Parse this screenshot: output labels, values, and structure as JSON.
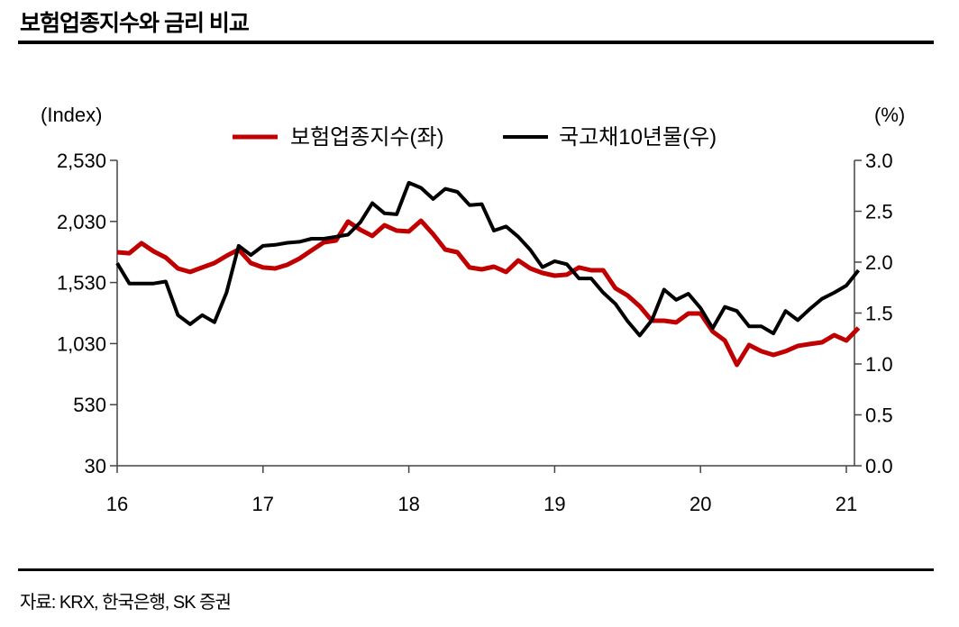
{
  "title": "보험업종지수와 금리 비교",
  "source": "자료: KRX, 한국은행, SK 증권",
  "chart_data": {
    "type": "line",
    "title": "보험업종지수와 금리 비교",
    "y_left_label": "(Index)",
    "y_right_label": "(%)",
    "x_ticks": [
      {
        "x": 0,
        "label": "16"
      },
      {
        "x": 12,
        "label": "17"
      },
      {
        "x": 24,
        "label": "18"
      },
      {
        "x": 36,
        "label": "19"
      },
      {
        "x": 48,
        "label": "20"
      },
      {
        "x": 60,
        "label": "21"
      }
    ],
    "x_range": [
      0,
      61
    ],
    "x_unit": "months since 2016-01",
    "ylim_left": [
      30,
      2530
    ],
    "yticks_left": [
      {
        "v": 2530,
        "label": "2,530"
      },
      {
        "v": 2030,
        "label": "2,030"
      },
      {
        "v": 1530,
        "label": "1,530"
      },
      {
        "v": 1030,
        "label": "1,030"
      },
      {
        "v": 530,
        "label": "530"
      },
      {
        "v": 30,
        "label": "30"
      }
    ],
    "ylim_right": [
      0,
      3.0
    ],
    "yticks_right": [
      {
        "v": 3.0,
        "label": "3.0"
      },
      {
        "v": 2.5,
        "label": "2.5"
      },
      {
        "v": 2.0,
        "label": "2.0"
      },
      {
        "v": 1.5,
        "label": "1.5"
      },
      {
        "v": 1.0,
        "label": "1.0"
      },
      {
        "v": 0.5,
        "label": "0.5"
      },
      {
        "v": 0.0,
        "label": "0.0"
      }
    ],
    "legend_position": "top-center",
    "series": [
      {
        "name": "보험업종지수(좌)",
        "axis": "left",
        "color": "#c00000",
        "values": [
          1778,
          1770,
          1852,
          1785,
          1734,
          1645,
          1616,
          1653,
          1689,
          1748,
          1800,
          1689,
          1653,
          1645,
          1675,
          1726,
          1793,
          1859,
          1874,
          2029,
          1962,
          1911,
          1999,
          1955,
          1948,
          2036,
          1925,
          1800,
          1778,
          1653,
          1638,
          1660,
          1616,
          1711,
          1645,
          1608,
          1586,
          1594,
          1653,
          1630,
          1630,
          1483,
          1424,
          1335,
          1217,
          1217,
          1203,
          1276,
          1276,
          1129,
          1055,
          856,
          1018,
          967,
          937,
          967,
          1011,
          1026,
          1040,
          1099,
          1055,
          1158
        ]
      },
      {
        "name": "국고채10년물(우)",
        "axis": "right",
        "color": "#000000",
        "values": [
          1.99,
          1.79,
          1.79,
          1.79,
          1.81,
          1.48,
          1.39,
          1.48,
          1.41,
          1.7,
          2.16,
          2.07,
          2.16,
          2.17,
          2.19,
          2.2,
          2.23,
          2.23,
          2.25,
          2.27,
          2.39,
          2.58,
          2.48,
          2.47,
          2.78,
          2.73,
          2.62,
          2.72,
          2.69,
          2.56,
          2.57,
          2.31,
          2.35,
          2.25,
          2.12,
          1.95,
          2.01,
          1.98,
          1.84,
          1.84,
          1.7,
          1.59,
          1.42,
          1.28,
          1.43,
          1.73,
          1.63,
          1.69,
          1.55,
          1.35,
          1.56,
          1.52,
          1.37,
          1.37,
          1.3,
          1.52,
          1.43,
          1.54,
          1.64,
          1.7,
          1.77,
          1.92
        ]
      }
    ]
  }
}
